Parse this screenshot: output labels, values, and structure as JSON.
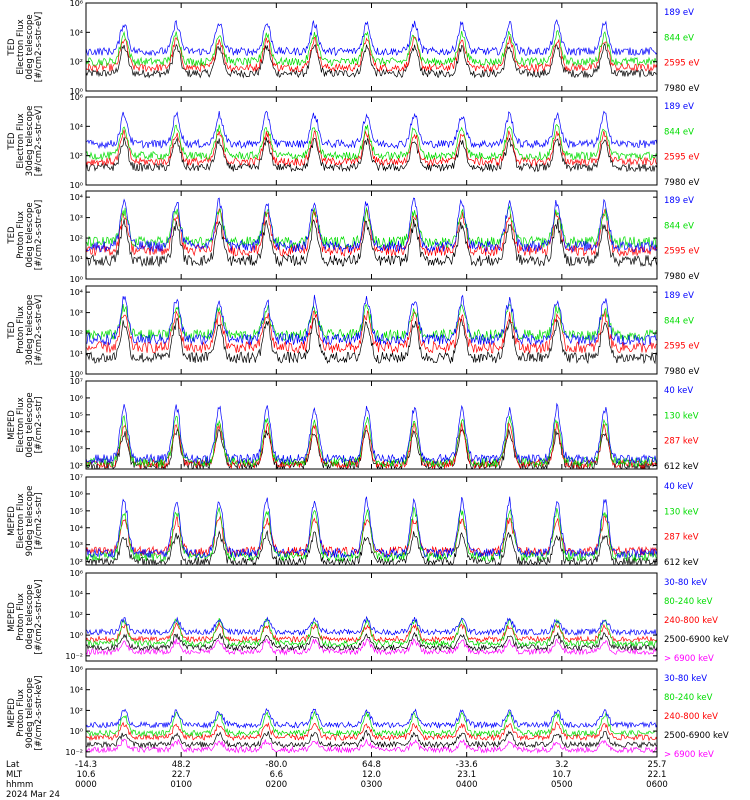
{
  "colors": {
    "blue": "#0000ff",
    "red": "#ff0000",
    "green": "#00dd00",
    "black": "#000000",
    "magenta": "#ff00ff"
  },
  "chart_data": {
    "type": "line",
    "x_axis": {
      "row_labels": [
        "Lat",
        "MLT",
        "hhmm",
        "2024 Mar 24"
      ],
      "ticks": [
        {
          "lat": "-14.3",
          "mlt": "10.6",
          "hhmm": "0000"
        },
        {
          "lat": "48.2",
          "mlt": "22.7",
          "hhmm": "0100"
        },
        {
          "lat": "-80.0",
          "mlt": "6.6",
          "hhmm": "0200"
        },
        {
          "lat": "64.8",
          "mlt": "12.0",
          "hhmm": "0300"
        },
        {
          "lat": "-33.6",
          "mlt": "23.1",
          "hhmm": "0400"
        },
        {
          "lat": "3.2",
          "mlt": "10.7",
          "hhmm": "0500"
        },
        {
          "lat": "25.7",
          "mlt": "22.1",
          "hhmm": "0600"
        }
      ]
    },
    "panels": [
      {
        "ylabel_lines": [
          "TED",
          "Electron Flux",
          "0deg telescope",
          "[#/cm2-s-str-eV]"
        ],
        "yticks": [
          {
            "v": 6,
            "label": "10⁶"
          },
          {
            "v": 4,
            "label": "10⁴"
          },
          {
            "v": 2,
            "label": "10²"
          },
          {
            "v": 0,
            "label": "10⁰"
          }
        ],
        "ylim_log10": [
          0,
          6
        ],
        "series": [
          {
            "name": "7980 eV",
            "color": "#000000",
            "base": 1.2,
            "peak": 3.0
          },
          {
            "name": "2595 eV",
            "color": "#ff0000",
            "base": 1.6,
            "peak": 3.5
          },
          {
            "name": "844 eV",
            "color": "#00dd00",
            "base": 2.0,
            "peak": 3.9
          },
          {
            "name": "189 eV",
            "color": "#0000ff",
            "base": 2.7,
            "peak": 4.6
          }
        ]
      },
      {
        "ylabel_lines": [
          "TED",
          "Electron Flux",
          "30deg telescope",
          "[#/cm2-s-str-eV]"
        ],
        "yticks": [
          {
            "v": 6,
            "label": "10⁶"
          },
          {
            "v": 4,
            "label": "10⁴"
          },
          {
            "v": 2,
            "label": "10²"
          },
          {
            "v": 0,
            "label": "10⁰"
          }
        ],
        "ylim_log10": [
          0,
          6
        ],
        "series": [
          {
            "name": "7980 eV",
            "color": "#000000",
            "base": 1.2,
            "peak": 3.0
          },
          {
            "name": "2595 eV",
            "color": "#ff0000",
            "base": 1.6,
            "peak": 3.5
          },
          {
            "name": "844 eV",
            "color": "#00dd00",
            "base": 2.0,
            "peak": 3.9
          },
          {
            "name": "189 eV",
            "color": "#0000ff",
            "base": 2.8,
            "peak": 4.8
          }
        ]
      },
      {
        "ylabel_lines": [
          "TED",
          "Proton Flux",
          "0deg telescope",
          "[#/cm2-s-str-eV]"
        ],
        "yticks": [
          {
            "v": 4,
            "label": "10⁴"
          },
          {
            "v": 3,
            "label": "10³"
          },
          {
            "v": 2,
            "label": "10²"
          },
          {
            "v": 1,
            "label": "10¹"
          },
          {
            "v": 0,
            "label": "10⁰"
          }
        ],
        "ylim_log10": [
          0,
          4.3
        ],
        "series": [
          {
            "name": "7980 eV",
            "color": "#000000",
            "base": 0.9,
            "peak": 2.7
          },
          {
            "name": "2595 eV",
            "color": "#ff0000",
            "base": 1.4,
            "peak": 3.2
          },
          {
            "name": "844 eV",
            "color": "#00dd00",
            "base": 1.8,
            "peak": 3.3
          },
          {
            "name": "189 eV",
            "color": "#0000ff",
            "base": 1.6,
            "peak": 3.8
          }
        ]
      },
      {
        "ylabel_lines": [
          "TED",
          "Proton Flux",
          "30deg telescope",
          "[#/cm2-s-str-eV]"
        ],
        "yticks": [
          {
            "v": 4,
            "label": "10⁴"
          },
          {
            "v": 3,
            "label": "10³"
          },
          {
            "v": 2,
            "label": "10²"
          },
          {
            "v": 1,
            "label": "10¹"
          },
          {
            "v": 0,
            "label": "10⁰"
          }
        ],
        "ylim_log10": [
          0,
          4.3
        ],
        "series": [
          {
            "name": "7980 eV",
            "color": "#000000",
            "base": 0.8,
            "peak": 2.5
          },
          {
            "name": "2595 eV",
            "color": "#ff0000",
            "base": 1.3,
            "peak": 2.9
          },
          {
            "name": "844 eV",
            "color": "#00dd00",
            "base": 1.9,
            "peak": 3.2
          },
          {
            "name": "189 eV",
            "color": "#0000ff",
            "base": 1.7,
            "peak": 3.6
          }
        ]
      },
      {
        "ylabel_lines": [
          "MEPED",
          "Electron Flux",
          "0deg telescope",
          "[#/cm2-s-str]"
        ],
        "yticks": [
          {
            "v": 7,
            "label": "10⁷"
          },
          {
            "v": 6,
            "label": "10⁶"
          },
          {
            "v": 5,
            "label": "10⁵"
          },
          {
            "v": 4,
            "label": "10⁴"
          },
          {
            "v": 3,
            "label": "10³"
          },
          {
            "v": 2,
            "label": "10²"
          }
        ],
        "ylim_log10": [
          1.8,
          7
        ],
        "series": [
          {
            "name": "612 keV",
            "color": "#000000",
            "base": 2.0,
            "peak": 4.0
          },
          {
            "name": "287 keV",
            "color": "#ff0000",
            "base": 2.1,
            "peak": 4.3
          },
          {
            "name": "130 keV",
            "color": "#00dd00",
            "base": 2.2,
            "peak": 4.7
          },
          {
            "name": "40 keV",
            "color": "#0000ff",
            "base": 2.4,
            "peak": 5.4
          }
        ]
      },
      {
        "ylabel_lines": [
          "MEPED",
          "Electron Flux",
          "90deg telescope",
          "[#/cm2-s-str]"
        ],
        "yticks": [
          {
            "v": 7,
            "label": "10⁷"
          },
          {
            "v": 6,
            "label": "10⁶"
          },
          {
            "v": 5,
            "label": "10⁵"
          },
          {
            "v": 4,
            "label": "10⁴"
          },
          {
            "v": 3,
            "label": "10³"
          },
          {
            "v": 2,
            "label": "10²"
          }
        ],
        "ylim_log10": [
          1.8,
          7
        ],
        "series": [
          {
            "name": "612 keV",
            "color": "#000000",
            "base": 2.0,
            "peak": 3.6
          },
          {
            "name": "287 keV",
            "color": "#ff0000",
            "base": 2.6,
            "peak": 4.5
          },
          {
            "name": "130 keV",
            "color": "#00dd00",
            "base": 2.3,
            "peak": 5.0
          },
          {
            "name": "40 keV",
            "color": "#0000ff",
            "base": 2.5,
            "peak": 5.6
          }
        ]
      },
      {
        "ylabel_lines": [
          "MEPED",
          "Proton Flux",
          "0deg telescope",
          "[#/cm2-s-str-keV]"
        ],
        "yticks": [
          {
            "v": 6,
            "label": "10⁶"
          },
          {
            "v": 4,
            "label": "10⁴"
          },
          {
            "v": 2,
            "label": "10²"
          },
          {
            "v": 0,
            "label": "10⁰"
          },
          {
            "v": -2,
            "label": "10⁻²"
          }
        ],
        "ylim_log10": [
          -2.5,
          6
        ],
        "series": [
          {
            "name": "> 6900 keV",
            "color": "#ff00ff",
            "base": -1.6,
            "peak": -0.6
          },
          {
            "name": "2500-6900 keV",
            "color": "#000000",
            "base": -1.2,
            "peak": 0.0
          },
          {
            "name": "240-800 keV",
            "color": "#ff0000",
            "base": -0.4,
            "peak": 0.9
          },
          {
            "name": "80-240 keV",
            "color": "#00dd00",
            "base": -0.8,
            "peak": 1.4
          },
          {
            "name": "30-80 keV",
            "color": "#0000ff",
            "base": 0.3,
            "peak": 1.5
          }
        ]
      },
      {
        "ylabel_lines": [
          "MEPED",
          "Proton Flux",
          "90deg telescope",
          "[#/cm2-s-str-keV]"
        ],
        "yticks": [
          {
            "v": 6,
            "label": "10⁶"
          },
          {
            "v": 4,
            "label": "10⁴"
          },
          {
            "v": 2,
            "label": "10²"
          },
          {
            "v": 0,
            "label": "10⁰"
          },
          {
            "v": -2,
            "label": "10⁻²"
          }
        ],
        "ylim_log10": [
          -2.5,
          6
        ],
        "series": [
          {
            "name": "> 6900 keV",
            "color": "#ff00ff",
            "base": -1.8,
            "peak": -1.0
          },
          {
            "name": "2500-6900 keV",
            "color": "#000000",
            "base": -1.3,
            "peak": -0.2
          },
          {
            "name": "240-800 keV",
            "color": "#ff0000",
            "base": -0.6,
            "peak": 0.6
          },
          {
            "name": "80-240 keV",
            "color": "#00dd00",
            "base": -0.2,
            "peak": 1.6
          },
          {
            "name": "30-80 keV",
            "color": "#0000ff",
            "base": 0.6,
            "peak": 1.9
          }
        ]
      }
    ],
    "passes_hours": [
      0.4,
      0.95,
      1.4,
      1.9,
      2.4,
      2.95,
      3.45,
      3.95,
      4.45,
      4.95,
      5.45
    ]
  }
}
